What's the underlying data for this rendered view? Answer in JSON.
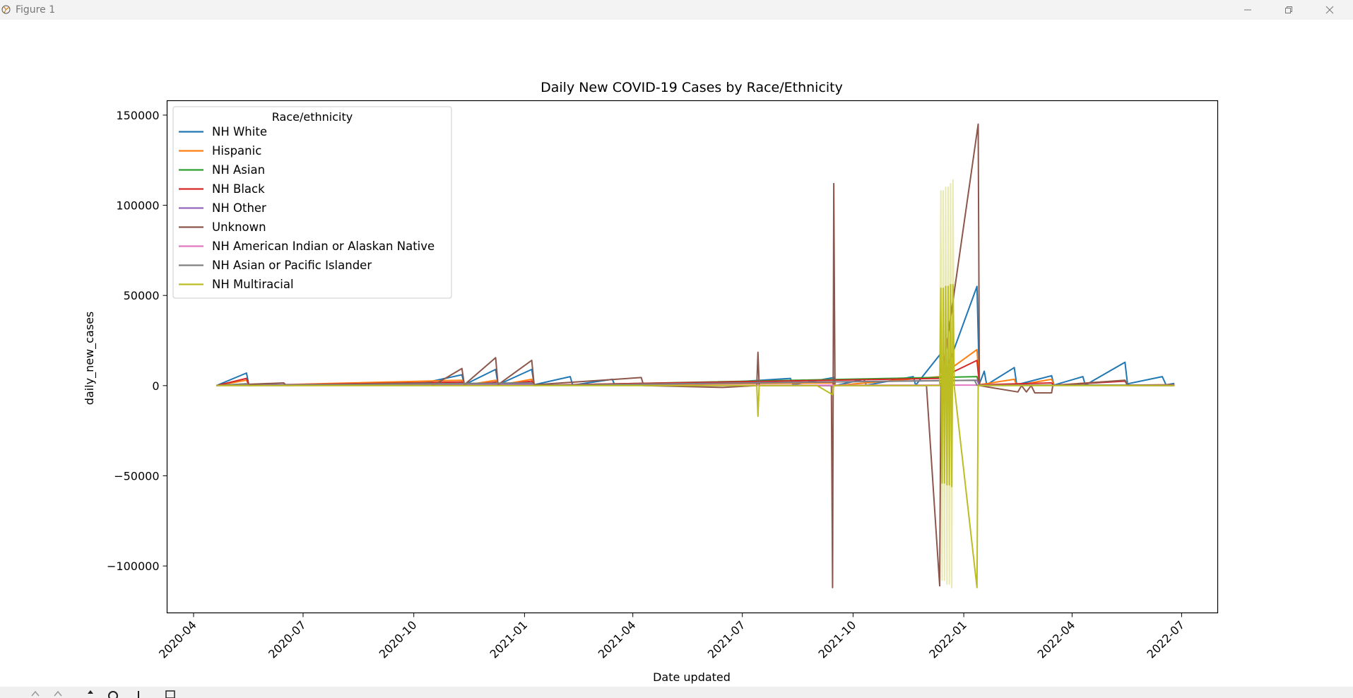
{
  "window": {
    "title": "Figure 1"
  },
  "toolbar": {
    "icons": [
      "home-icon",
      "back-icon",
      "forward-icon",
      "pan-icon",
      "zoom-icon",
      "configure-icon",
      "save-icon"
    ]
  },
  "chart_data": {
    "type": "line",
    "title": "Daily New COVID-19 Cases by Race/Ethnicity",
    "xlabel": "Date updated",
    "ylabel": "daily_new_cases",
    "xlim": [
      "2020-03-10",
      "2022-07-31"
    ],
    "ylim": [
      -126000,
      158000
    ],
    "x_ticks": [
      "2020-04-01",
      "2020-07-01",
      "2020-10-01",
      "2021-01-01",
      "2021-04-01",
      "2021-07-01",
      "2021-10-01",
      "2022-01-01",
      "2022-04-01",
      "2022-07-01"
    ],
    "x_tick_labels": [
      "2020-04",
      "2020-07",
      "2020-10",
      "2021-01",
      "2021-04",
      "2021-07",
      "2021-10",
      "2022-01",
      "2022-04",
      "2022-07"
    ],
    "y_ticks": [
      -100000,
      -50000,
      0,
      50000,
      100000,
      150000
    ],
    "y_tick_labels": [
      "−100000",
      "−50000",
      "0",
      "50000",
      "100000",
      "150000"
    ],
    "grid": false,
    "legend": {
      "title": "Race/ethnicity",
      "placement": "upper-left"
    },
    "series": [
      {
        "name": "NH White",
        "color": "#1f77b4",
        "points": [
          [
            "2020-04-20",
            0
          ],
          [
            "2020-05-15",
            7000
          ],
          [
            "2020-05-17",
            200
          ],
          [
            "2020-10-01",
            300
          ],
          [
            "2020-11-10",
            6000
          ],
          [
            "2020-11-12",
            500
          ],
          [
            "2020-12-08",
            9000
          ],
          [
            "2020-12-10",
            500
          ],
          [
            "2021-01-07",
            9000
          ],
          [
            "2021-01-09",
            500
          ],
          [
            "2021-02-08",
            5000
          ],
          [
            "2021-02-10",
            300
          ],
          [
            "2021-03-15",
            3500
          ],
          [
            "2021-03-17",
            300
          ],
          [
            "2021-05-10",
            1500
          ],
          [
            "2021-05-12",
            300
          ],
          [
            "2021-08-10",
            4000
          ],
          [
            "2021-08-12",
            500
          ],
          [
            "2021-09-15",
            4500
          ],
          [
            "2021-09-16",
            0
          ],
          [
            "2021-10-10",
            3500
          ],
          [
            "2021-10-12",
            200
          ],
          [
            "2021-11-20",
            5000
          ],
          [
            "2021-11-22",
            200
          ],
          [
            "2021-12-12",
            17000
          ],
          [
            "2021-12-14",
            2000
          ],
          [
            "2022-01-12",
            55000
          ],
          [
            "2022-01-14",
            1000
          ],
          [
            "2022-01-18",
            8000
          ],
          [
            "2022-01-20",
            500
          ],
          [
            "2022-02-12",
            10000
          ],
          [
            "2022-02-14",
            500
          ],
          [
            "2022-03-15",
            5500
          ],
          [
            "2022-03-17",
            300
          ],
          [
            "2022-04-10",
            5000
          ],
          [
            "2022-04-12",
            300
          ],
          [
            "2022-05-15",
            13000
          ],
          [
            "2022-05-17",
            1000
          ],
          [
            "2022-06-15",
            5000
          ],
          [
            "2022-06-18",
            500
          ],
          [
            "2022-06-25",
            1200
          ]
        ]
      },
      {
        "name": "Hispanic",
        "color": "#ff7f0e",
        "points": [
          [
            "2020-04-20",
            0
          ],
          [
            "2020-05-15",
            3000
          ],
          [
            "2020-05-17",
            100
          ],
          [
            "2020-11-10",
            3000
          ],
          [
            "2020-11-12",
            200
          ],
          [
            "2020-12-08",
            3000
          ],
          [
            "2020-12-10",
            200
          ],
          [
            "2021-01-07",
            3500
          ],
          [
            "2021-01-09",
            200
          ],
          [
            "2021-09-15",
            1500
          ],
          [
            "2021-09-16",
            0
          ],
          [
            "2021-12-12",
            5000
          ],
          [
            "2022-01-12",
            20000
          ],
          [
            "2022-01-14",
            500
          ],
          [
            "2022-02-12",
            3500
          ],
          [
            "2022-02-14",
            200
          ],
          [
            "2022-03-15",
            3500
          ],
          [
            "2022-03-17",
            200
          ],
          [
            "2022-05-15",
            3000
          ],
          [
            "2022-05-17",
            300
          ],
          [
            "2022-06-25",
            500
          ]
        ]
      },
      {
        "name": "NH Asian",
        "color": "#2ca02c",
        "points": [
          [
            "2020-04-20",
            0
          ],
          [
            "2020-05-15",
            1000
          ],
          [
            "2020-05-17",
            100
          ],
          [
            "2021-01-07",
            1500
          ],
          [
            "2021-01-09",
            100
          ],
          [
            "2022-01-12",
            5000
          ],
          [
            "2022-01-14",
            200
          ],
          [
            "2022-06-25",
            300
          ]
        ]
      },
      {
        "name": "NH Black",
        "color": "#d62728",
        "points": [
          [
            "2020-04-20",
            0
          ],
          [
            "2020-05-15",
            4000
          ],
          [
            "2020-05-17",
            100
          ],
          [
            "2020-11-10",
            2000
          ],
          [
            "2020-11-12",
            200
          ],
          [
            "2020-12-08",
            2000
          ],
          [
            "2020-12-10",
            200
          ],
          [
            "2021-01-07",
            2500
          ],
          [
            "2021-01-09",
            200
          ],
          [
            "2021-12-12",
            4000
          ],
          [
            "2022-01-12",
            14000
          ],
          [
            "2022-01-14",
            500
          ],
          [
            "2022-03-15",
            1500
          ],
          [
            "2022-03-17",
            200
          ],
          [
            "2022-05-15",
            2500
          ],
          [
            "2022-05-17",
            300
          ],
          [
            "2022-06-25",
            400
          ]
        ]
      },
      {
        "name": "NH Other",
        "color": "#9467bd",
        "points": [
          [
            "2020-04-20",
            0
          ],
          [
            "2020-05-15",
            500
          ],
          [
            "2021-01-07",
            800
          ],
          [
            "2021-01-09",
            100
          ],
          [
            "2022-01-12",
            3000
          ],
          [
            "2022-01-14",
            100
          ],
          [
            "2022-06-25",
            200
          ]
        ]
      },
      {
        "name": "Unknown",
        "color": "#8c564b",
        "points": [
          [
            "2020-04-20",
            0
          ],
          [
            "2020-06-15",
            1500
          ],
          [
            "2020-06-17",
            0
          ],
          [
            "2020-10-15",
            1500
          ],
          [
            "2020-10-17",
            0
          ],
          [
            "2020-11-10",
            9500
          ],
          [
            "2020-11-12",
            500
          ],
          [
            "2020-12-08",
            15500
          ],
          [
            "2020-12-10",
            500
          ],
          [
            "2021-01-07",
            14000
          ],
          [
            "2021-01-09",
            500
          ],
          [
            "2021-04-08",
            4500
          ],
          [
            "2021-04-10",
            0
          ],
          [
            "2021-06-15",
            -1000
          ],
          [
            "2021-07-13",
            0
          ],
          [
            "2021-07-14",
            18500
          ],
          [
            "2021-07-15",
            0
          ],
          [
            "2021-09-13",
            0
          ],
          [
            "2021-09-14",
            -112000
          ],
          [
            "2021-09-15",
            112000
          ],
          [
            "2021-09-16",
            0
          ],
          [
            "2021-12-01",
            0
          ],
          [
            "2021-12-12",
            -111000
          ],
          [
            "2021-12-13",
            0
          ],
          [
            "2022-01-13",
            145000
          ],
          [
            "2022-01-14",
            0
          ],
          [
            "2022-02-15",
            -3500
          ],
          [
            "2022-02-18",
            0
          ],
          [
            "2022-02-22",
            -3500
          ],
          [
            "2022-02-26",
            0
          ],
          [
            "2022-03-01",
            -4000
          ],
          [
            "2022-03-15",
            -4000
          ],
          [
            "2022-03-16",
            0
          ],
          [
            "2022-05-15",
            3000
          ],
          [
            "2022-05-17",
            0
          ],
          [
            "2022-06-25",
            0
          ]
        ]
      },
      {
        "name": "NH American Indian or Alaskan Native",
        "color": "#e377c2",
        "points": [
          [
            "2020-04-20",
            0
          ],
          [
            "2022-01-12",
            300
          ],
          [
            "2022-06-25",
            0
          ]
        ]
      },
      {
        "name": "NH Asian or Pacific Islander",
        "color": "#7f7f7f",
        "points": [
          [
            "2020-04-20",
            0
          ],
          [
            "2020-05-15",
            1000
          ],
          [
            "2020-05-17",
            100
          ],
          [
            "2021-01-07",
            1500
          ],
          [
            "2021-01-09",
            100
          ],
          [
            "2022-01-10",
            3000
          ],
          [
            "2022-01-12",
            200
          ],
          [
            "2022-06-25",
            200
          ]
        ]
      },
      {
        "name": "NH Multiracial",
        "color": "#bcbd22",
        "points": [
          [
            "2020-04-20",
            0
          ],
          [
            "2021-07-13",
            0
          ],
          [
            "2021-07-14",
            -17000
          ],
          [
            "2021-07-15",
            0
          ],
          [
            "2021-09-01",
            0
          ],
          [
            "2021-09-14",
            -5000
          ],
          [
            "2021-09-15",
            0
          ],
          [
            "2021-12-12",
            0
          ],
          [
            "2021-12-13",
            54000
          ],
          [
            "2021-12-14",
            -54000
          ],
          [
            "2021-12-15",
            54000
          ],
          [
            "2021-12-16",
            -54000
          ],
          [
            "2021-12-17",
            55000
          ],
          [
            "2021-12-18",
            -55000
          ],
          [
            "2021-12-19",
            55000
          ],
          [
            "2021-12-20",
            -55000
          ],
          [
            "2021-12-21",
            56000
          ],
          [
            "2021-12-22",
            -56000
          ],
          [
            "2021-12-23",
            56000
          ],
          [
            "2021-12-24",
            0
          ],
          [
            "2022-01-12",
            -112000
          ],
          [
            "2022-01-13",
            0
          ],
          [
            "2022-06-25",
            0
          ]
        ]
      }
    ],
    "faded_series": {
      "name": "",
      "color": "#bcbd22",
      "opacity": 0.35,
      "points": [
        [
          "2021-12-12",
          0
        ],
        [
          "2021-12-13",
          108000
        ],
        [
          "2021-12-14",
          -108000
        ],
        [
          "2021-12-15",
          108000
        ],
        [
          "2021-12-16",
          -108000
        ],
        [
          "2021-12-17",
          110000
        ],
        [
          "2021-12-18",
          -110000
        ],
        [
          "2021-12-19",
          110000
        ],
        [
          "2021-12-20",
          -110000
        ],
        [
          "2021-12-21",
          112000
        ],
        [
          "2021-12-22",
          -112000
        ],
        [
          "2021-12-23",
          114000
        ],
        [
          "2021-12-24",
          0
        ]
      ]
    }
  }
}
